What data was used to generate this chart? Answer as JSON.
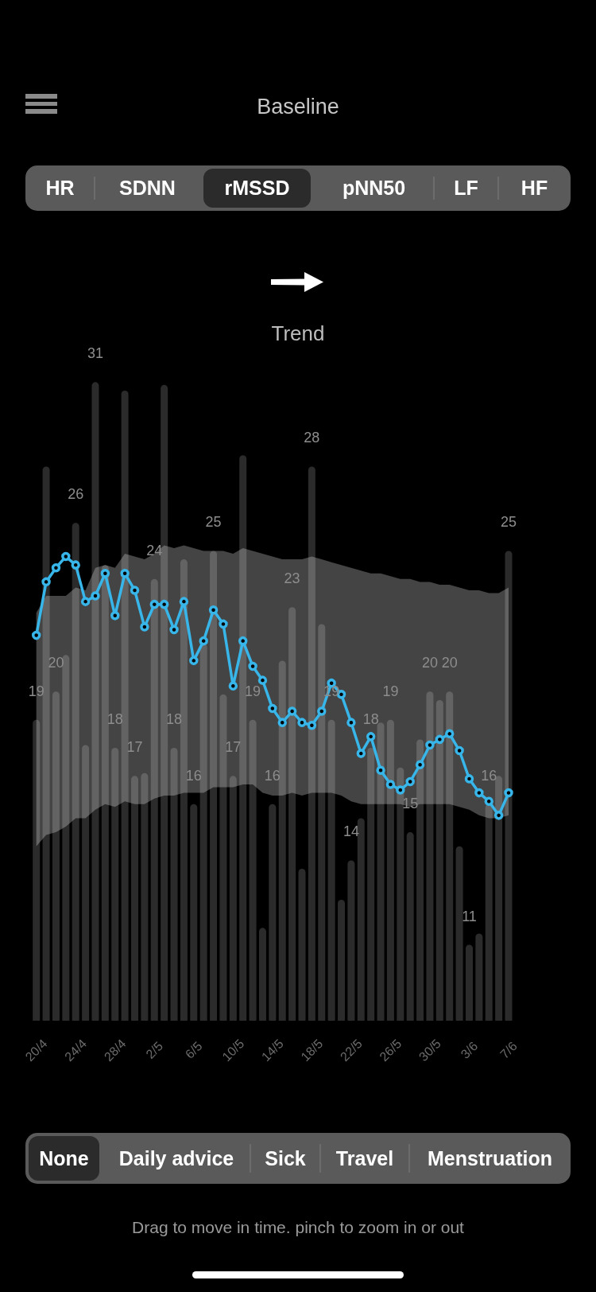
{
  "chart_data": {
    "type": "bar",
    "title": "Baseline",
    "subtitle": "Trend",
    "categories": [
      "20/4",
      null,
      null,
      null,
      "24/4",
      null,
      null,
      null,
      "28/4",
      null,
      null,
      null,
      "2/5",
      null,
      null,
      null,
      "6/5",
      null,
      null,
      null,
      "10/5",
      null,
      null,
      null,
      "14/5",
      null,
      null,
      null,
      "18/5",
      null,
      null,
      null,
      "22/5",
      null,
      null,
      null,
      "26/5",
      null,
      null,
      null,
      "30/5",
      null,
      null,
      null,
      "3/6",
      null,
      null,
      null,
      "7/6"
    ],
    "series": [
      {
        "type": "bar",
        "color": "#2b2b2b",
        "values": [
          19,
          28,
          20,
          21.3,
          26,
          18.1,
          31,
          24.5,
          18,
          30.7,
          17,
          17.1,
          24,
          30.9,
          18,
          24.7,
          16,
          21.7,
          25,
          19.9,
          17,
          28.4,
          19,
          11.6,
          16,
          21.1,
          23,
          13.7,
          28,
          22.4,
          19,
          12.6,
          14,
          15.5,
          18,
          18.9,
          19,
          17.3,
          15,
          18.3,
          20,
          19.7,
          20,
          14.5,
          11,
          11.4,
          16,
          17.0,
          25
        ],
        "value_labels": [
          "19",
          null,
          "20",
          null,
          "26",
          null,
          "31",
          null,
          "18",
          null,
          "17",
          null,
          "24",
          null,
          "18",
          null,
          "16",
          null,
          "25",
          null,
          "17",
          null,
          "19",
          null,
          "16",
          null,
          "23",
          null,
          "28",
          null,
          "19",
          null,
          "14",
          null,
          "18",
          null,
          "19",
          null,
          "15",
          null,
          "20",
          null,
          "20",
          null,
          "11",
          null,
          "16",
          null,
          "25"
        ]
      },
      {
        "type": "line",
        "color": "#38b6e9",
        "values": [
          22.0,
          23.9,
          24.4,
          24.8,
          24.5,
          23.2,
          23.4,
          24.2,
          22.7,
          24.2,
          23.6,
          22.3,
          23.1,
          23.1,
          22.2,
          23.2,
          21.1,
          21.8,
          22.9,
          22.4,
          20.2,
          21.8,
          20.9,
          20.4,
          19.4,
          18.9,
          19.3,
          18.9,
          18.8,
          19.3,
          20.3,
          19.9,
          18.9,
          17.8,
          18.4,
          17.2,
          16.7,
          16.5,
          16.8,
          17.4,
          18.1,
          18.3,
          18.5,
          17.9,
          16.9,
          16.4,
          16.1,
          15.6,
          16.4
        ],
        "upper": [
          22.8,
          23.4,
          23.4,
          23.4,
          23.7,
          23.6,
          24.4,
          24.5,
          24.4,
          24.9,
          24.8,
          24.7,
          24.9,
          25.2,
          25.1,
          25.2,
          25.1,
          25.0,
          25.0,
          25.0,
          24.9,
          25.1,
          25.0,
          24.9,
          24.8,
          24.7,
          24.7,
          24.7,
          24.8,
          24.7,
          24.6,
          24.5,
          24.4,
          24.3,
          24.2,
          24.2,
          24.1,
          24.0,
          24.0,
          23.9,
          23.9,
          23.8,
          23.8,
          23.7,
          23.6,
          23.6,
          23.5,
          23.5,
          23.7
        ],
        "lower": [
          14.5,
          14.9,
          15.0,
          15.2,
          15.5,
          15.5,
          15.8,
          16.0,
          15.9,
          16.1,
          16.0,
          16.0,
          16.2,
          16.3,
          16.3,
          16.4,
          16.4,
          16.4,
          16.6,
          16.6,
          16.6,
          16.7,
          16.7,
          16.4,
          16.3,
          16.3,
          16.4,
          16.3,
          16.4,
          16.4,
          16.4,
          16.3,
          16.1,
          16.0,
          16.0,
          16.0,
          16.0,
          16.0,
          15.9,
          16.0,
          16.0,
          16.0,
          16.0,
          15.9,
          15.8,
          15.6,
          15.5,
          15.5,
          15.6
        ]
      }
    ],
    "ylim": [
      8.3,
      31
    ],
    "tick_labels": "x",
    "marker": "circle",
    "line_style": "solid",
    "annotations": [
      "HR",
      "SDNN",
      "rMSSD",
      "pNN50",
      "LF",
      "HF",
      "None",
      "Daily advice",
      "Sick",
      "Travel",
      "Menstruation",
      "Drag to move in time. pinch to zoom in or out"
    ]
  }
}
